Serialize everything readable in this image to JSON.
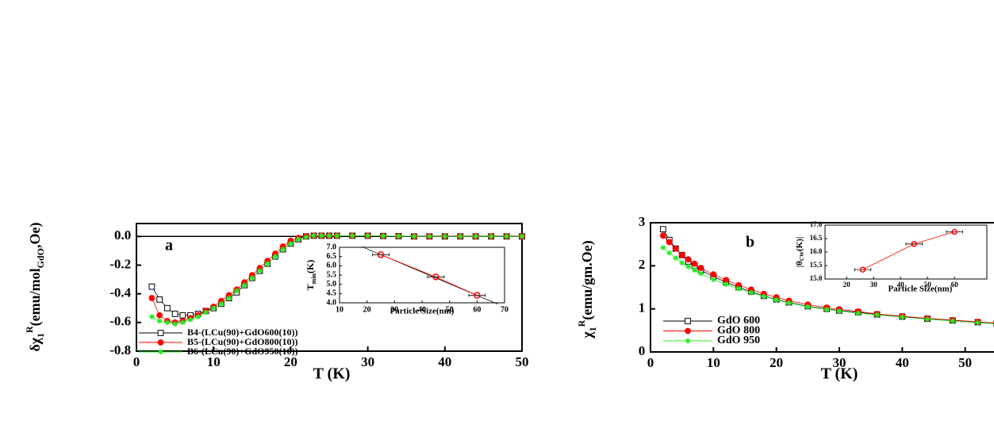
{
  "chart_data": [
    {
      "type": "scatter",
      "annotation": "a",
      "xlabel": "T (K)",
      "ylabel": [
        "δχ",
        "1",
        "R",
        "(emu/mol",
        "GdO",
        ",Oe)"
      ],
      "xlim": [
        0,
        50
      ],
      "xticks": [
        0,
        10,
        20,
        30,
        40,
        50
      ],
      "ylim": [
        -0.8,
        0.09
      ],
      "yticks": [
        -0.8,
        -0.6,
        -0.4,
        -0.2,
        {
          "value": 0,
          "label": "0.0"
        }
      ],
      "reference_line": 0,
      "x": [
        2,
        3,
        4,
        5,
        6,
        7,
        8,
        9,
        10,
        11,
        12,
        13,
        14,
        15,
        16,
        17,
        18,
        19,
        20,
        21,
        22,
        23,
        24,
        25,
        26,
        28,
        30,
        32,
        34,
        36,
        38,
        40,
        42,
        44,
        46,
        48,
        50
      ],
      "series": [
        {
          "name": "B4-(LCu(90)+GdO600(10))",
          "color": "#000000",
          "marker": "square",
          "values": [
            -0.35,
            -0.44,
            -0.5,
            -0.54,
            -0.55,
            -0.55,
            -0.54,
            -0.52,
            -0.5,
            -0.47,
            -0.43,
            -0.39,
            -0.34,
            -0.29,
            -0.24,
            -0.19,
            -0.14,
            -0.09,
            -0.05,
            -0.02,
            0,
            0.005,
            0.005,
            0.005,
            0.005,
            0.005,
            0.005,
            0.003,
            0.002,
            0,
            0,
            0,
            0,
            0,
            0,
            0,
            0
          ]
        },
        {
          "name": "B5-(LCu(90)+GdO800(10))",
          "color": "#ff0000",
          "marker": "circle",
          "values": [
            -0.43,
            -0.55,
            -0.59,
            -0.6,
            -0.59,
            -0.57,
            -0.55,
            -0.52,
            -0.49,
            -0.45,
            -0.41,
            -0.37,
            -0.32,
            -0.27,
            -0.22,
            -0.17,
            -0.12,
            -0.07,
            -0.03,
            -0.01,
            0,
            0.005,
            0.005,
            0.005,
            0.005,
            0.005,
            0.005,
            0.003,
            0.002,
            0,
            0,
            0,
            0,
            0,
            0,
            0,
            0
          ]
        },
        {
          "name": "B6-(LCu(90)+GdO950(10))",
          "color": "#22ee22",
          "marker": "star",
          "values": [
            -0.56,
            -0.59,
            -0.6,
            -0.61,
            -0.6,
            -0.58,
            -0.56,
            -0.53,
            -0.5,
            -0.47,
            -0.43,
            -0.38,
            -0.34,
            -0.29,
            -0.24,
            -0.19,
            -0.14,
            -0.09,
            -0.05,
            -0.02,
            -0.005,
            0.005,
            0.005,
            0.005,
            0.005,
            0.005,
            0.005,
            0.003,
            0.002,
            0,
            0,
            0,
            0,
            0,
            0,
            0,
            0
          ]
        }
      ]
    },
    {
      "type": "scatter",
      "xlabel": "Particle Size(nm)",
      "ylabel": [
        "T",
        "min",
        "(K)"
      ],
      "xlim": [
        10,
        70
      ],
      "xticks": [
        10,
        20,
        30,
        40,
        50,
        60,
        70
      ],
      "ylim": [
        4,
        7
      ],
      "yticks": [
        {
          "value": 4,
          "label": "4.0"
        },
        4.5,
        {
          "value": 5,
          "label": "5.0"
        },
        5.5,
        {
          "value": 6,
          "label": "6.0"
        },
        6.5,
        {
          "value": 7,
          "label": "7.0"
        }
      ],
      "x": [
        25,
        45,
        60
      ],
      "fit": {
        "x": [
          18,
          67.5
        ],
        "values": [
          7.04,
          3.93
        ]
      },
      "series": [
        {
          "color": "#ff0000",
          "marker": "circle-open",
          "values": [
            6.6,
            5.4,
            4.4
          ],
          "xerr": [
            3,
            3,
            3
          ]
        }
      ]
    },
    {
      "type": "scatter",
      "annotation": "b",
      "xlabel": "T (K)",
      "ylabel": [
        "χ",
        "1",
        "R",
        "(emu/gm.Oe)"
      ],
      "xlim": [
        0,
        60
      ],
      "xticks": [
        0,
        10,
        20,
        30,
        40,
        50
      ],
      "ylim": [
        0,
        3
      ],
      "yticks": [
        0,
        1,
        2,
        3
      ],
      "x": [
        2,
        3,
        4,
        5,
        6,
        7,
        8,
        10,
        12,
        14,
        16,
        18,
        20,
        22,
        25,
        28,
        30,
        33,
        36,
        40,
        44,
        48,
        52,
        55
      ],
      "series": [
        {
          "name": "GdO 600",
          "color": "#000000",
          "marker": "square",
          "values": [
            2.85,
            2.6,
            2.4,
            2.25,
            2.1,
            2.0,
            1.9,
            1.75,
            1.62,
            1.5,
            1.4,
            1.3,
            1.22,
            1.15,
            1.06,
            1.0,
            0.96,
            0.92,
            0.87,
            0.82,
            0.77,
            0.73,
            0.69,
            0.66
          ]
        },
        {
          "name": "GdO 800",
          "color": "#ff0000",
          "marker": "circle",
          "values": [
            2.7,
            2.55,
            2.4,
            2.25,
            2.15,
            2.05,
            1.95,
            1.8,
            1.67,
            1.55,
            1.45,
            1.35,
            1.27,
            1.19,
            1.1,
            1.03,
            0.99,
            0.94,
            0.88,
            0.83,
            0.78,
            0.74,
            0.7,
            0.67
          ]
        },
        {
          "name": "GdO 950",
          "color": "#22ee22",
          "marker": "star",
          "values": [
            2.42,
            2.3,
            2.18,
            2.07,
            1.98,
            1.9,
            1.82,
            1.68,
            1.57,
            1.47,
            1.38,
            1.29,
            1.21,
            1.14,
            1.05,
            0.99,
            0.95,
            0.9,
            0.86,
            0.81,
            0.76,
            0.72,
            0.68,
            0.65
          ]
        }
      ]
    },
    {
      "type": "line",
      "xlabel": "Particle Size(nm)",
      "ylabel": [
        "|θ",
        "CW",
        "(K)|"
      ],
      "xlim": [
        12,
        72
      ],
      "xticks": [
        20,
        30,
        40,
        50,
        60
      ],
      "ylim": [
        15,
        17
      ],
      "yticks": [
        {
          "value": 15,
          "label": "15.0"
        },
        15.5,
        {
          "value": 16,
          "label": "16.0"
        },
        16.5,
        {
          "value": 17,
          "label": "17.0"
        }
      ],
      "x": [
        26,
        45,
        60
      ],
      "series": [
        {
          "color": "#ff0000",
          "marker": "circle-open",
          "values": [
            15.35,
            16.3,
            16.75
          ],
          "xerr": [
            3,
            3,
            3
          ]
        }
      ]
    }
  ]
}
